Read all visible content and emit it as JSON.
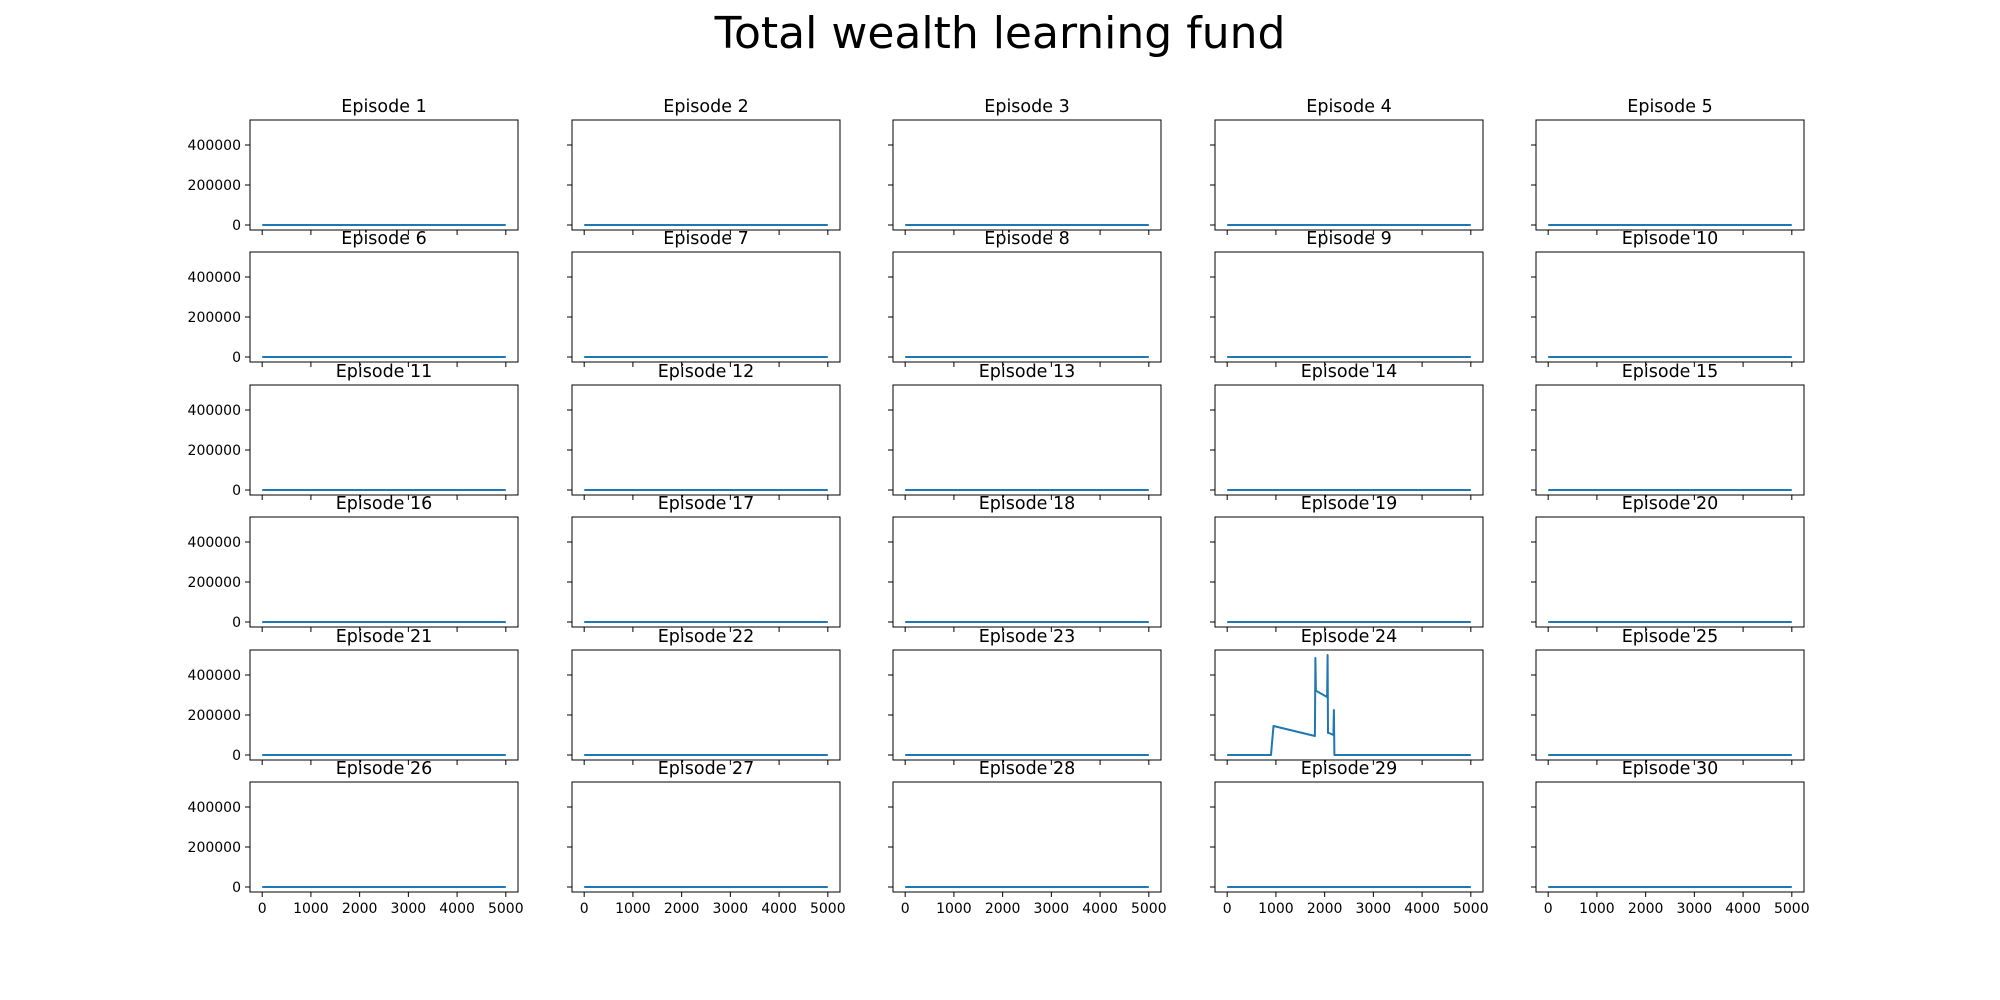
{
  "figure": {
    "title": "Total wealth learning fund"
  },
  "chart_data": {
    "type": "line",
    "layout": "6x5 grid of subplots, shared axes",
    "line_color": "#1f77b4",
    "grid": false,
    "xlim": [
      -250,
      5250
    ],
    "ylim": [
      -25000,
      525000
    ],
    "x_ticks": [
      0,
      1000,
      2000,
      3000,
      4000,
      5000
    ],
    "x_tick_labels": [
      "0",
      "1000",
      "2000",
      "3000",
      "4000",
      "5000"
    ],
    "y_ticks": [
      0,
      200000,
      400000
    ],
    "y_tick_labels": [
      "0",
      "200000",
      "400000"
    ],
    "panels": [
      {
        "title": "Episode 1",
        "x": [
          0,
          5000
        ],
        "y": [
          0,
          0
        ]
      },
      {
        "title": "Episode 2",
        "x": [
          0,
          5000
        ],
        "y": [
          0,
          0
        ]
      },
      {
        "title": "Episode 3",
        "x": [
          0,
          5000
        ],
        "y": [
          0,
          0
        ]
      },
      {
        "title": "Episode 4",
        "x": [
          0,
          5000
        ],
        "y": [
          0,
          0
        ]
      },
      {
        "title": "Episode 5",
        "x": [
          0,
          5000
        ],
        "y": [
          0,
          0
        ]
      },
      {
        "title": "Episode 6",
        "x": [
          0,
          5000
        ],
        "y": [
          0,
          0
        ]
      },
      {
        "title": "Episode 7",
        "x": [
          0,
          5000
        ],
        "y": [
          0,
          0
        ]
      },
      {
        "title": "Episode 8",
        "x": [
          0,
          5000
        ],
        "y": [
          0,
          0
        ]
      },
      {
        "title": "Episode 9",
        "x": [
          0,
          5000
        ],
        "y": [
          0,
          0
        ]
      },
      {
        "title": "Episode 10",
        "x": [
          0,
          5000
        ],
        "y": [
          0,
          0
        ]
      },
      {
        "title": "Episode 11",
        "x": [
          0,
          5000
        ],
        "y": [
          0,
          0
        ]
      },
      {
        "title": "Episode 12",
        "x": [
          0,
          5000
        ],
        "y": [
          0,
          0
        ]
      },
      {
        "title": "Episode 13",
        "x": [
          0,
          5000
        ],
        "y": [
          0,
          0
        ]
      },
      {
        "title": "Episode 14",
        "x": [
          0,
          5000
        ],
        "y": [
          0,
          0
        ]
      },
      {
        "title": "Episode 15",
        "x": [
          0,
          5000
        ],
        "y": [
          0,
          0
        ]
      },
      {
        "title": "Episode 16",
        "x": [
          0,
          5000
        ],
        "y": [
          0,
          0
        ]
      },
      {
        "title": "Episode 17",
        "x": [
          0,
          5000
        ],
        "y": [
          0,
          0
        ]
      },
      {
        "title": "Episode 18",
        "x": [
          0,
          5000
        ],
        "y": [
          0,
          0
        ]
      },
      {
        "title": "Episode 19",
        "x": [
          0,
          5000
        ],
        "y": [
          0,
          0
        ]
      },
      {
        "title": "Episode 20",
        "x": [
          0,
          5000
        ],
        "y": [
          0,
          0
        ]
      },
      {
        "title": "Episode 21",
        "x": [
          0,
          5000
        ],
        "y": [
          0,
          0
        ]
      },
      {
        "title": "Episode 22",
        "x": [
          0,
          5000
        ],
        "y": [
          0,
          0
        ]
      },
      {
        "title": "Episode 23",
        "x": [
          0,
          5000
        ],
        "y": [
          0,
          0
        ]
      },
      {
        "title": "Episode 24",
        "x": [
          0,
          900,
          920,
          950,
          1800,
          1810,
          1820,
          1830,
          2050,
          2060,
          2070,
          2090,
          2180,
          2190,
          2200,
          2210,
          5000
        ],
        "y": [
          0,
          0,
          60000,
          145000,
          95000,
          485000,
          320000,
          320000,
          290000,
          500000,
          110000,
          110000,
          100000,
          225000,
          0,
          0,
          0
        ]
      },
      {
        "title": "Episode 25",
        "x": [
          0,
          5000
        ],
        "y": [
          0,
          0
        ]
      },
      {
        "title": "Episode 26",
        "x": [
          0,
          5000
        ],
        "y": [
          0,
          0
        ]
      },
      {
        "title": "Episode 27",
        "x": [
          0,
          5000
        ],
        "y": [
          0,
          0
        ]
      },
      {
        "title": "Episode 28",
        "x": [
          0,
          5000
        ],
        "y": [
          0,
          0
        ]
      },
      {
        "title": "Episode 29",
        "x": [
          0,
          5000
        ],
        "y": [
          0,
          0
        ]
      },
      {
        "title": "Episode 30",
        "x": [
          0,
          5000
        ],
        "y": [
          0,
          0
        ]
      }
    ]
  }
}
